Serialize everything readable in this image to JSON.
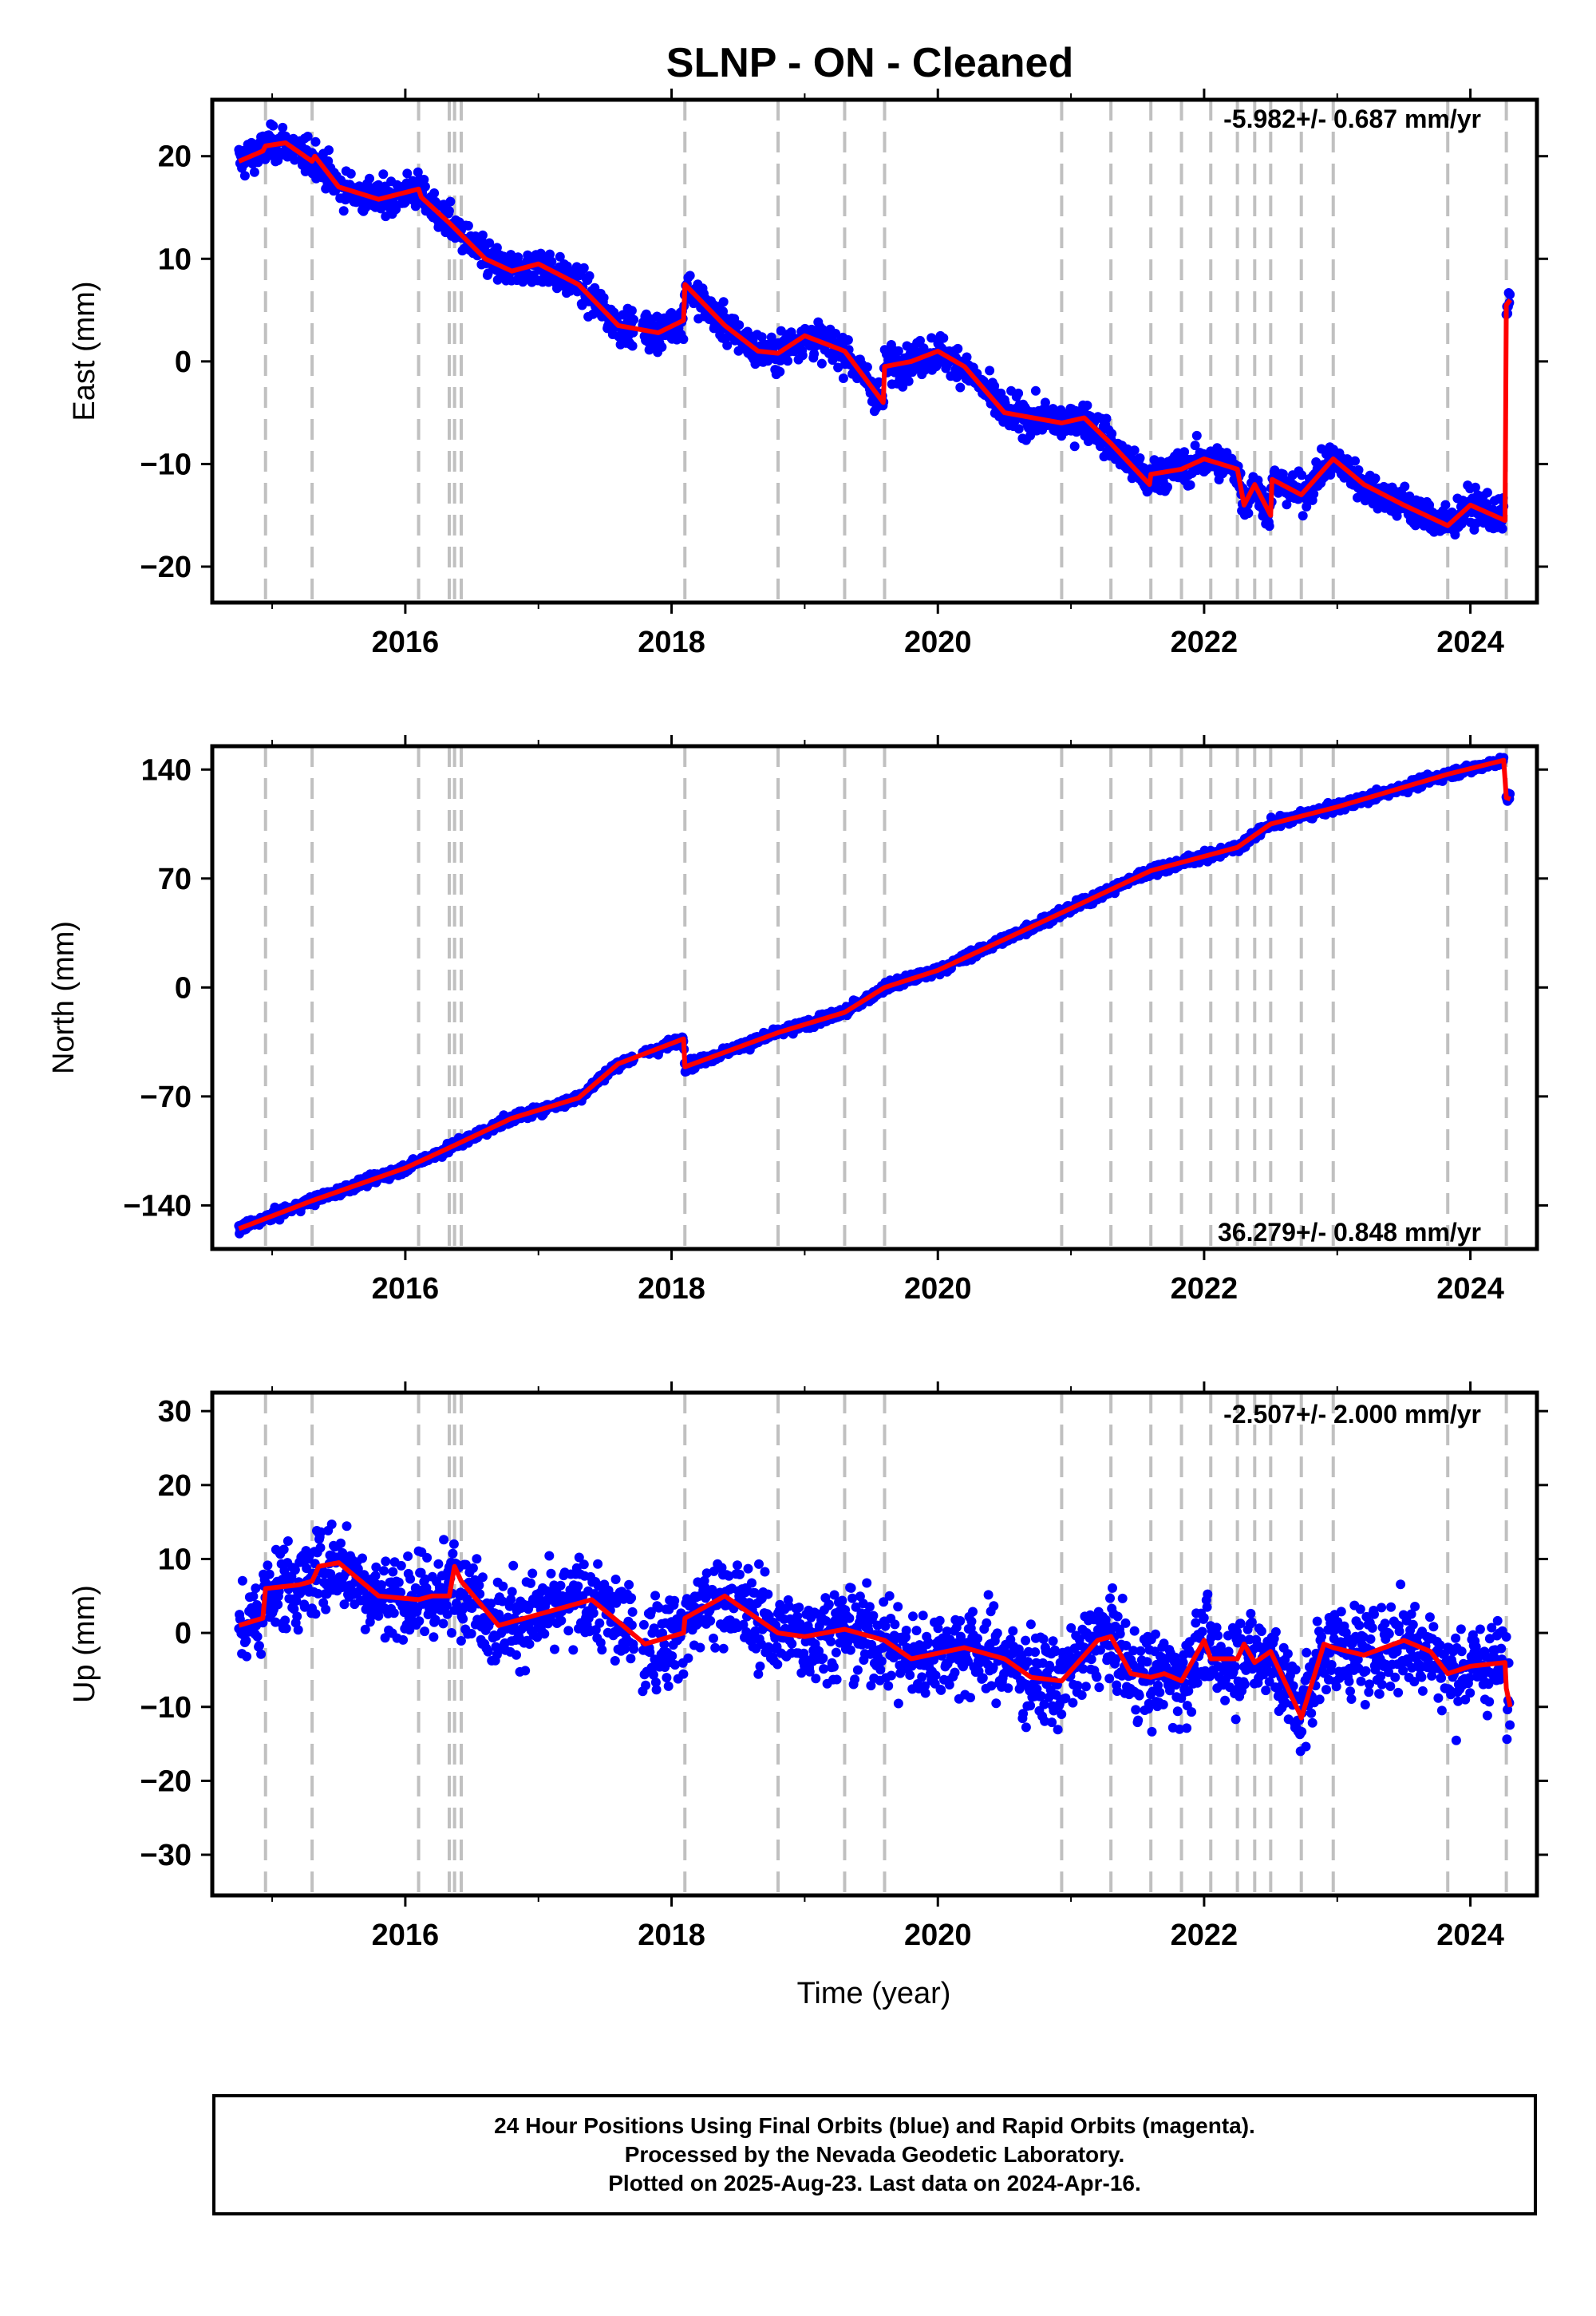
{
  "title": "SLNP  - ON - Cleaned",
  "x_axis_label": "Time (year)",
  "caption": [
    "24 Hour Positions Using Final Orbits (blue) and Rapid Orbits (magenta).",
    "Processed by the Nevada Geodetic Laboratory.",
    "Plotted on 2025-Aug-23. Last data on 2024-Apr-16."
  ],
  "colors": {
    "data_points": "#0000ff",
    "model_fit": "#ff0000",
    "event_lines": "#c0c0c0"
  },
  "chart_data": [
    {
      "type": "scatter",
      "name": "east",
      "ylabel": "East (mm)",
      "rate_text": "-5.982+/- 0.687 mm/yr",
      "xlim": [
        2014.55,
        2024.5
      ],
      "ylim": [
        -23.5,
        25.5
      ],
      "x_ticks": [
        "2016",
        "2018",
        "2020",
        "2022",
        "2024"
      ],
      "y_ticks": [
        "20",
        "10",
        "0",
        "−10",
        "−20"
      ],
      "y_tick_values": [
        20,
        10,
        0,
        -10,
        -20
      ],
      "event_lines": [
        2014.95,
        2015.3,
        2016.1,
        2016.33,
        2016.37,
        2016.42,
        2018.1,
        2018.8,
        2019.3,
        2019.6,
        2020.93,
        2021.3,
        2021.6,
        2021.83,
        2022.05,
        2022.25,
        2022.38,
        2022.5,
        2022.73,
        2022.97,
        2023.83,
        2024.27
      ],
      "model_fit": {
        "x": [
          2014.75,
          2014.93,
          2014.95,
          2015.1,
          2015.3,
          2015.32,
          2015.5,
          2015.8,
          2016.1,
          2016.12,
          2016.33,
          2016.6,
          2016.8,
          2017.0,
          2017.3,
          2017.6,
          2017.9,
          2018.09,
          2018.1,
          2018.4,
          2018.65,
          2018.8,
          2019.0,
          2019.3,
          2019.59,
          2019.6,
          2019.8,
          2020.0,
          2020.2,
          2020.5,
          2020.93,
          2021.1,
          2021.3,
          2021.59,
          2021.6,
          2021.83,
          2022.0,
          2022.25,
          2022.3,
          2022.38,
          2022.5,
          2022.51,
          2022.73,
          2022.97,
          2023.2,
          2023.5,
          2023.83,
          2024.0,
          2024.26,
          2024.27,
          2024.3
        ],
        "y": [
          19.5,
          20.5,
          21.0,
          21.3,
          19.5,
          20.0,
          17.0,
          15.8,
          16.8,
          16.0,
          13.5,
          10.0,
          8.8,
          9.5,
          7.5,
          3.5,
          2.8,
          4.0,
          7.5,
          3.5,
          1.0,
          0.8,
          2.5,
          1.0,
          -4.0,
          -0.5,
          0.0,
          1.0,
          -0.5,
          -5.0,
          -6.0,
          -5.5,
          -8.0,
          -12.0,
          -11.0,
          -10.5,
          -9.5,
          -10.5,
          -14.0,
          -12.0,
          -15.0,
          -11.5,
          -13.0,
          -9.5,
          -12.0,
          -14.0,
          -16.0,
          -14.0,
          -15.5,
          5.5,
          6.0
        ]
      }
    },
    {
      "type": "scatter",
      "name": "north",
      "ylabel": "North (mm)",
      "rate_text": "36.279+/- 0.848 mm/yr",
      "xlim": [
        2014.55,
        2024.5
      ],
      "ylim": [
        -168,
        155
      ],
      "x_ticks": [
        "2016",
        "2018",
        "2020",
        "2022",
        "2024"
      ],
      "y_ticks": [
        "140",
        "70",
        "0",
        "−70",
        "−140"
      ],
      "y_tick_values": [
        140,
        70,
        0,
        -70,
        -140
      ],
      "event_lines": [
        2014.95,
        2015.3,
        2016.1,
        2016.33,
        2016.37,
        2016.42,
        2018.1,
        2018.8,
        2019.3,
        2019.6,
        2020.93,
        2021.3,
        2021.6,
        2021.83,
        2022.05,
        2022.25,
        2022.38,
        2022.5,
        2022.73,
        2022.97,
        2023.83,
        2024.27
      ],
      "model_fit": {
        "x": [
          2014.75,
          2015.3,
          2016.0,
          2016.33,
          2016.8,
          2017.3,
          2017.6,
          2018.09,
          2018.1,
          2018.8,
          2019.3,
          2019.6,
          2020.0,
          2020.93,
          2021.6,
          2022.25,
          2022.5,
          2023.0,
          2023.83,
          2024.25,
          2024.27,
          2024.3
        ],
        "y": [
          -155,
          -137,
          -116,
          -103,
          -84,
          -71,
          -49,
          -33,
          -51,
          -29,
          -16,
          0,
          11,
          48,
          75,
          90,
          105,
          116,
          137,
          146,
          122,
          121
        ]
      }
    },
    {
      "type": "scatter",
      "name": "up",
      "ylabel": "Up (mm)",
      "rate_text": "-2.507+/- 2.000 mm/yr",
      "xlim": [
        2014.55,
        2024.5
      ],
      "ylim": [
        -35.5,
        32.5
      ],
      "x_ticks": [
        "2016",
        "2018",
        "2020",
        "2022",
        "2024"
      ],
      "y_ticks": [
        "30",
        "20",
        "10",
        "0",
        "−10",
        "−20",
        "−30"
      ],
      "y_tick_values": [
        30,
        20,
        10,
        0,
        -10,
        -20,
        -30
      ],
      "event_lines": [
        2014.95,
        2015.3,
        2016.1,
        2016.33,
        2016.37,
        2016.42,
        2018.1,
        2018.8,
        2019.3,
        2019.6,
        2020.93,
        2021.3,
        2021.6,
        2021.83,
        2022.05,
        2022.25,
        2022.38,
        2022.5,
        2022.73,
        2022.97,
        2023.83,
        2024.27
      ],
      "model_fit": {
        "x": [
          2014.75,
          2014.93,
          2014.95,
          2015.2,
          2015.3,
          2015.35,
          2015.5,
          2015.8,
          2016.1,
          2016.2,
          2016.33,
          2016.37,
          2016.42,
          2016.7,
          2017.0,
          2017.4,
          2017.8,
          2018.09,
          2018.1,
          2018.4,
          2018.8,
          2019.0,
          2019.3,
          2019.6,
          2019.8,
          2020.2,
          2020.5,
          2020.7,
          2020.93,
          2021.2,
          2021.3,
          2021.45,
          2021.6,
          2021.7,
          2021.83,
          2022.0,
          2022.05,
          2022.25,
          2022.3,
          2022.38,
          2022.5,
          2022.72,
          2022.73,
          2022.9,
          2022.97,
          2023.2,
          2023.5,
          2023.7,
          2023.83,
          2024.0,
          2024.26,
          2024.27,
          2024.3
        ],
        "y": [
          1.0,
          2.0,
          6.0,
          6.5,
          7.0,
          9.0,
          9.5,
          5.0,
          4.5,
          5.0,
          5.0,
          9.0,
          7.0,
          1.0,
          2.5,
          4.5,
          -1.5,
          0.0,
          2.0,
          5.0,
          0.0,
          -0.5,
          0.5,
          -1.0,
          -3.5,
          -2.0,
          -3.5,
          -6.0,
          -6.5,
          -1.0,
          -0.5,
          -5.5,
          -6.0,
          -5.5,
          -6.5,
          -1.0,
          -3.5,
          -3.5,
          -1.5,
          -4.0,
          -2.5,
          -11.0,
          -11.5,
          -1.5,
          -2.0,
          -3.0,
          -1.0,
          -2.5,
          -5.5,
          -4.5,
          -4.0,
          -7.5,
          -10.0
        ]
      }
    }
  ]
}
